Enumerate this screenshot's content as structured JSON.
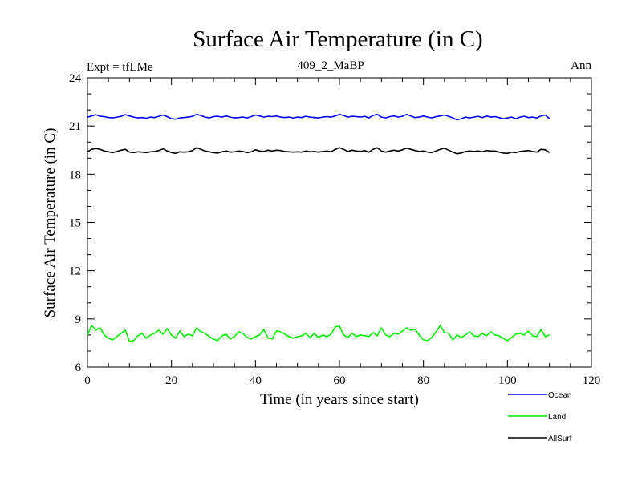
{
  "chart_data": {
    "type": "line",
    "title": "Surface Air Temperature (in C)",
    "subtitle_left": "Expt = tfLMe",
    "subtitle_center": "409_2_MaBP",
    "subtitle_right": "Ann",
    "xlabel": "Time (in years since start)",
    "ylabel": "Surface Air Temperature (in C)",
    "xlim": [
      0,
      120
    ],
    "ylim": [
      6,
      24
    ],
    "xticks": [
      0,
      20,
      40,
      60,
      80,
      100,
      120
    ],
    "yticks": [
      6,
      9,
      12,
      15,
      18,
      21,
      24
    ],
    "grid": false,
    "legend_position": "bottom-right",
    "x": [
      0,
      1,
      2,
      3,
      4,
      5,
      6,
      7,
      8,
      9,
      10,
      11,
      12,
      13,
      14,
      15,
      16,
      17,
      18,
      19,
      20,
      21,
      22,
      23,
      24,
      25,
      26,
      27,
      28,
      29,
      30,
      31,
      32,
      33,
      34,
      35,
      36,
      37,
      38,
      39,
      40,
      41,
      42,
      43,
      44,
      45,
      46,
      47,
      48,
      49,
      50,
      51,
      52,
      53,
      54,
      55,
      56,
      57,
      58,
      59,
      60,
      61,
      62,
      63,
      64,
      65,
      66,
      67,
      68,
      69,
      70,
      71,
      72,
      73,
      74,
      75,
      76,
      77,
      78,
      79,
      80,
      81,
      82,
      83,
      84,
      85,
      86,
      87,
      88,
      89,
      90,
      91,
      92,
      93,
      94,
      95,
      96,
      97,
      98,
      99,
      100,
      101,
      102,
      103,
      104,
      105,
      106,
      107,
      108,
      109,
      110
    ],
    "series": [
      {
        "name": "Ocean",
        "color": "#0000ee",
        "values": [
          21.55,
          21.62,
          21.7,
          21.6,
          21.58,
          21.52,
          21.5,
          21.55,
          21.6,
          21.7,
          21.62,
          21.55,
          21.5,
          21.52,
          21.48,
          21.55,
          21.52,
          21.6,
          21.68,
          21.58,
          21.45,
          21.42,
          21.5,
          21.52,
          21.55,
          21.6,
          21.72,
          21.65,
          21.55,
          21.5,
          21.58,
          21.6,
          21.55,
          21.62,
          21.55,
          21.5,
          21.52,
          21.55,
          21.5,
          21.58,
          21.68,
          21.62,
          21.55,
          21.6,
          21.58,
          21.62,
          21.55,
          21.52,
          21.55,
          21.5,
          21.55,
          21.52,
          21.6,
          21.55,
          21.52,
          21.5,
          21.55,
          21.58,
          21.55,
          21.62,
          21.72,
          21.65,
          21.55,
          21.6,
          21.58,
          21.55,
          21.6,
          21.5,
          21.65,
          21.72,
          21.55,
          21.5,
          21.58,
          21.62,
          21.55,
          21.6,
          21.72,
          21.62,
          21.52,
          21.55,
          21.62,
          21.55,
          21.5,
          21.58,
          21.62,
          21.68,
          21.6,
          21.5,
          21.38,
          21.45,
          21.55,
          21.5,
          21.55,
          21.6,
          21.52,
          21.62,
          21.55,
          21.58,
          21.52,
          21.45,
          21.5,
          21.55,
          21.45,
          21.55,
          21.6,
          21.52,
          21.55,
          21.5,
          21.62,
          21.68,
          21.45
        ]
      },
      {
        "name": "Land",
        "color": "#00ee00",
        "values": [
          8.0,
          8.6,
          8.3,
          8.45,
          8.0,
          7.8,
          7.7,
          7.9,
          8.1,
          8.3,
          7.6,
          7.65,
          7.95,
          8.1,
          7.8,
          8.0,
          8.1,
          8.3,
          8.05,
          8.4,
          8.0,
          7.8,
          8.25,
          7.9,
          8.05,
          7.95,
          8.45,
          8.2,
          8.1,
          7.9,
          7.75,
          7.65,
          7.95,
          8.05,
          7.75,
          7.9,
          8.2,
          8.1,
          7.85,
          7.75,
          7.9,
          8.0,
          8.35,
          7.8,
          7.75,
          8.25,
          8.2,
          8.05,
          7.9,
          7.8,
          7.9,
          7.95,
          8.1,
          7.85,
          8.1,
          7.85,
          8.0,
          7.9,
          8.05,
          8.5,
          8.55,
          8.0,
          7.85,
          8.1,
          7.9,
          8.0,
          7.95,
          7.9,
          8.15,
          7.95,
          8.45,
          8.0,
          7.9,
          8.1,
          8.05,
          8.25,
          8.45,
          8.3,
          8.35,
          8.0,
          7.7,
          7.65,
          7.85,
          8.2,
          8.6,
          8.15,
          8.1,
          7.7,
          8.0,
          7.85,
          8.0,
          8.2,
          7.95,
          7.9,
          8.1,
          7.95,
          8.2,
          8.0,
          7.95,
          7.8,
          7.65,
          7.85,
          8.05,
          8.1,
          8.0,
          8.25,
          7.95,
          7.9,
          8.35,
          7.9,
          8.0
        ]
      },
      {
        "name": "AllSurf",
        "color": "#000000",
        "values": [
          19.4,
          19.55,
          19.6,
          19.55,
          19.45,
          19.4,
          19.35,
          19.42,
          19.5,
          19.55,
          19.38,
          19.35,
          19.4,
          19.38,
          19.35,
          19.4,
          19.42,
          19.48,
          19.58,
          19.45,
          19.35,
          19.3,
          19.4,
          19.38,
          19.4,
          19.48,
          19.65,
          19.55,
          19.45,
          19.4,
          19.35,
          19.32,
          19.4,
          19.45,
          19.38,
          19.4,
          19.45,
          19.42,
          19.35,
          19.4,
          19.52,
          19.45,
          19.42,
          19.5,
          19.45,
          19.5,
          19.48,
          19.42,
          19.4,
          19.38,
          19.4,
          19.38,
          19.45,
          19.4,
          19.42,
          19.38,
          19.42,
          19.45,
          19.4,
          19.55,
          19.65,
          19.55,
          19.42,
          19.5,
          19.45,
          19.42,
          19.48,
          19.38,
          19.55,
          19.65,
          19.45,
          19.38,
          19.45,
          19.5,
          19.45,
          19.52,
          19.62,
          19.55,
          19.48,
          19.42,
          19.45,
          19.38,
          19.35,
          19.45,
          19.55,
          19.62,
          19.5,
          19.38,
          19.28,
          19.32,
          19.42,
          19.45,
          19.42,
          19.45,
          19.4,
          19.48,
          19.45,
          19.45,
          19.38,
          19.32,
          19.3,
          19.38,
          19.35,
          19.42,
          19.45,
          19.48,
          19.42,
          19.38,
          19.55,
          19.52,
          19.35
        ]
      }
    ]
  }
}
